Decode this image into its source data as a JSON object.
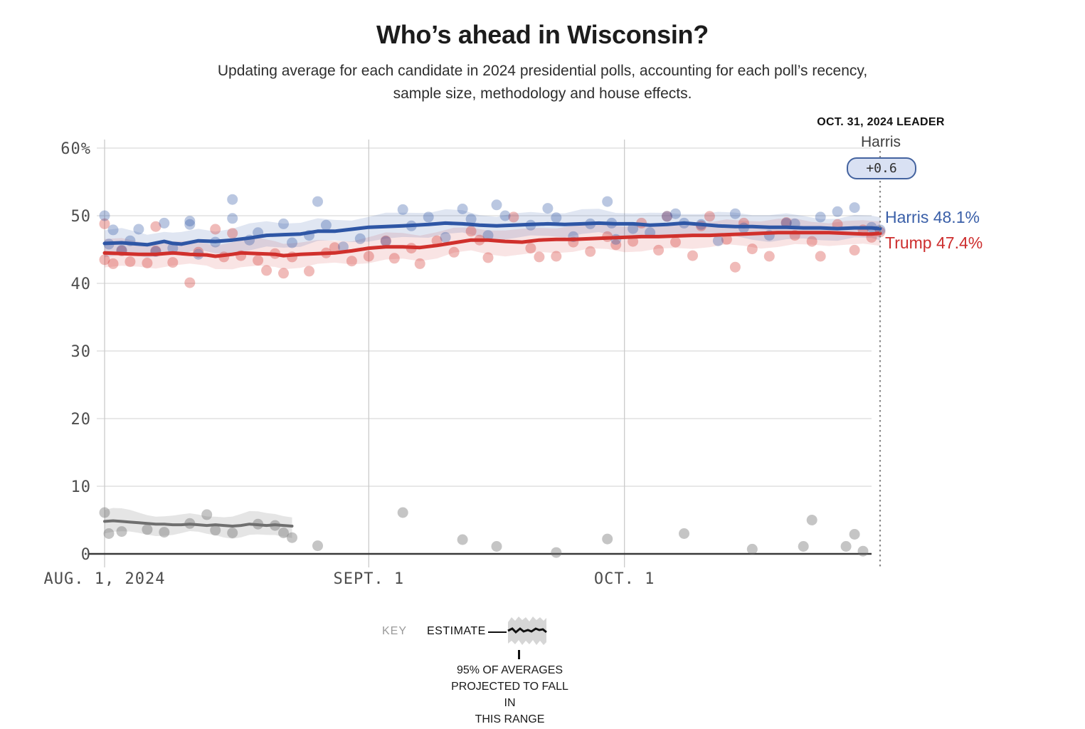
{
  "header": {
    "title": "Who’s ahead in Wisconsin?",
    "subtitle_line1": "Updating average for each candidate in 2024 presidential polls, accounting for each poll’s recency,",
    "subtitle_line2": "sample size, methodology and house effects."
  },
  "annotation": {
    "leader_label": "OCT. 31, 2024 LEADER",
    "leader_name": "Harris",
    "leader_margin": "+0.6"
  },
  "end_labels": {
    "harris": "Harris 48.1%",
    "trump": "Trump 47.4%"
  },
  "key": {
    "key_label": "KEY",
    "estimate_label": "ESTIMATE",
    "caption_line1": "95% OF AVERAGES",
    "caption_line2": "PROJECTED TO FALL IN",
    "caption_line3": "THIS RANGE"
  },
  "colors": {
    "harris_line": "#2e56a5",
    "trump_line": "#d0302c",
    "gray_line": "#6f6f6f",
    "harris_band": "#3c62ac",
    "trump_band": "#d0302c",
    "gray_band": "#999999",
    "grid": "#d9d9d9",
    "vertical_grid": "#cbcbcb",
    "zero_axis": "#3a3a3a",
    "tick_text": "#4d4d4d",
    "dotted_line": "#8a8a8a",
    "pill_bg": "#d9e1f3",
    "pill_border": "#44639f"
  },
  "chart_data": {
    "type": "line",
    "title": "Who’s ahead in Wisconsin?",
    "x_unit": "days since Aug 1, 2024",
    "x_range_days": [
      0,
      91
    ],
    "ylim": [
      0,
      60
    ],
    "grid": true,
    "y_ticks": [
      {
        "label": "0",
        "value": 0
      },
      {
        "label": "10",
        "value": 10
      },
      {
        "label": "20",
        "value": 20
      },
      {
        "label": "30",
        "value": 30
      },
      {
        "label": "40",
        "value": 40
      },
      {
        "label": "50",
        "value": 50
      },
      {
        "label": "60%",
        "value": 60
      }
    ],
    "x_ticks": [
      {
        "label": "AUG. 1, 2024",
        "day": 0
      },
      {
        "label": "SEPT. 1",
        "day": 31
      },
      {
        "label": "OCT. 1",
        "day": 61
      }
    ],
    "end_marker_day": 91,
    "series": [
      {
        "name": "unlabeled gray candidate",
        "final_value": null,
        "band_halfwidth": 1.5,
        "points": [
          [
            0,
            4.8
          ],
          [
            1,
            4.9
          ],
          [
            2,
            4.8
          ],
          [
            3,
            4.7
          ],
          [
            4,
            4.6
          ],
          [
            5,
            4.5
          ],
          [
            6,
            4.4
          ],
          [
            7,
            4.4
          ],
          [
            8,
            4.3
          ],
          [
            9,
            4.3
          ],
          [
            10,
            4.4
          ],
          [
            11,
            4.3
          ],
          [
            12,
            4.2
          ],
          [
            13,
            4.3
          ],
          [
            14,
            4.2
          ],
          [
            15,
            4.1
          ],
          [
            16,
            4.2
          ],
          [
            17,
            4.4
          ],
          [
            18,
            4.3
          ],
          [
            19,
            4.2
          ],
          [
            20,
            4.3
          ],
          [
            21,
            4.2
          ],
          [
            22,
            4.1
          ]
        ],
        "scatter": [
          [
            0,
            6.1
          ],
          [
            0.5,
            3.0
          ],
          [
            2,
            3.3
          ],
          [
            5,
            3.6
          ],
          [
            7,
            3.2
          ],
          [
            10,
            4.5
          ],
          [
            12,
            5.8
          ],
          [
            13,
            3.5
          ],
          [
            15,
            3.1
          ],
          [
            18,
            4.4
          ],
          [
            20,
            4.2
          ],
          [
            21,
            3.1
          ],
          [
            22,
            2.4
          ],
          [
            25,
            1.2
          ],
          [
            35,
            6.1
          ],
          [
            42,
            2.1
          ],
          [
            46,
            1.1
          ],
          [
            53,
            0.2
          ],
          [
            59,
            2.2
          ],
          [
            68,
            3.0
          ],
          [
            76,
            0.7
          ],
          [
            82,
            1.1
          ],
          [
            83,
            5.0
          ],
          [
            87,
            1.1
          ],
          [
            88,
            2.9
          ],
          [
            89,
            0.4
          ]
        ]
      },
      {
        "name": "Trump",
        "final_value": 47.4,
        "band_halfwidth": 1.85,
        "points": [
          [
            0,
            44.5
          ],
          [
            2,
            44.4
          ],
          [
            4,
            44.3
          ],
          [
            6,
            44.3
          ],
          [
            8,
            44.5
          ],
          [
            10,
            44.3
          ],
          [
            12,
            44.2
          ],
          [
            13,
            44.0
          ],
          [
            15,
            44.3
          ],
          [
            16,
            44.5
          ],
          [
            18,
            44.4
          ],
          [
            20,
            44.3
          ],
          [
            21,
            44.1
          ],
          [
            23,
            44.3
          ],
          [
            25,
            44.4
          ],
          [
            27,
            44.5
          ],
          [
            29,
            44.8
          ],
          [
            31,
            45.2
          ],
          [
            33,
            45.4
          ],
          [
            35,
            45.4
          ],
          [
            37,
            45.3
          ],
          [
            39,
            45.6
          ],
          [
            41,
            46.0
          ],
          [
            43,
            46.4
          ],
          [
            45,
            46.4
          ],
          [
            47,
            46.2
          ],
          [
            49,
            46.1
          ],
          [
            51,
            46.4
          ],
          [
            53,
            46.5
          ],
          [
            55,
            46.5
          ],
          [
            57,
            46.6
          ],
          [
            59,
            46.7
          ],
          [
            61,
            46.8
          ],
          [
            63,
            46.9
          ],
          [
            65,
            46.9
          ],
          [
            67,
            47.0
          ],
          [
            69,
            47.1
          ],
          [
            71,
            47.1
          ],
          [
            73,
            47.2
          ],
          [
            75,
            47.3
          ],
          [
            77,
            47.4
          ],
          [
            79,
            47.5
          ],
          [
            81,
            47.5
          ],
          [
            83,
            47.5
          ],
          [
            85,
            47.5
          ],
          [
            87,
            47.4
          ],
          [
            89,
            47.3
          ],
          [
            90,
            47.3
          ],
          [
            91,
            47.4
          ]
        ],
        "scatter": [
          [
            0,
            48.8
          ],
          [
            0,
            43.5
          ],
          [
            1,
            42.9
          ],
          [
            2,
            44.8
          ],
          [
            3,
            43.2
          ],
          [
            5,
            43.0
          ],
          [
            6,
            48.4
          ],
          [
            6,
            44.8
          ],
          [
            8,
            43.1
          ],
          [
            10,
            40.1
          ],
          [
            11,
            44.6
          ],
          [
            13,
            48.0
          ],
          [
            14,
            43.9
          ],
          [
            15,
            47.4
          ],
          [
            16,
            44.1
          ],
          [
            18,
            43.4
          ],
          [
            19,
            41.9
          ],
          [
            20,
            44.4
          ],
          [
            21,
            41.5
          ],
          [
            22,
            43.9
          ],
          [
            24,
            41.8
          ],
          [
            26,
            44.5
          ],
          [
            27,
            45.3
          ],
          [
            29,
            43.3
          ],
          [
            31,
            44.0
          ],
          [
            33,
            46.3
          ],
          [
            34,
            43.7
          ],
          [
            36,
            45.2
          ],
          [
            37,
            42.9
          ],
          [
            39,
            46.3
          ],
          [
            41,
            44.6
          ],
          [
            43,
            47.7
          ],
          [
            44,
            46.4
          ],
          [
            45,
            43.8
          ],
          [
            48,
            49.8
          ],
          [
            50,
            45.2
          ],
          [
            51,
            43.9
          ],
          [
            53,
            44.0
          ],
          [
            55,
            46.1
          ],
          [
            57,
            44.7
          ],
          [
            59,
            46.9
          ],
          [
            60,
            45.7
          ],
          [
            62,
            46.2
          ],
          [
            63,
            48.9
          ],
          [
            65,
            44.9
          ],
          [
            66,
            49.9
          ],
          [
            67,
            46.1
          ],
          [
            69,
            44.1
          ],
          [
            70,
            48.5
          ],
          [
            71,
            49.9
          ],
          [
            73,
            46.5
          ],
          [
            74,
            42.4
          ],
          [
            75,
            48.9
          ],
          [
            76,
            45.1
          ],
          [
            78,
            44.0
          ],
          [
            80,
            49.0
          ],
          [
            81,
            47.1
          ],
          [
            83,
            46.2
          ],
          [
            84,
            44.0
          ],
          [
            86,
            48.7
          ],
          [
            88,
            44.9
          ],
          [
            89,
            47.9
          ],
          [
            90,
            46.8
          ],
          [
            91,
            47.6
          ]
        ]
      },
      {
        "name": "Harris",
        "final_value": 48.1,
        "band_halfwidth": 1.75,
        "points": [
          [
            0,
            45.9
          ],
          [
            2,
            46.0
          ],
          [
            4,
            45.8
          ],
          [
            5,
            45.7
          ],
          [
            7,
            46.2
          ],
          [
            8,
            45.9
          ],
          [
            9,
            45.8
          ],
          [
            11,
            46.3
          ],
          [
            13,
            46.2
          ],
          [
            15,
            46.4
          ],
          [
            17,
            46.7
          ],
          [
            19,
            47.1
          ],
          [
            21,
            47.2
          ],
          [
            23,
            47.3
          ],
          [
            25,
            47.7
          ],
          [
            27,
            47.7
          ],
          [
            29,
            48.0
          ],
          [
            31,
            48.3
          ],
          [
            33,
            48.4
          ],
          [
            35,
            48.5
          ],
          [
            38,
            48.7
          ],
          [
            40,
            48.9
          ],
          [
            42,
            48.8
          ],
          [
            44,
            48.6
          ],
          [
            46,
            48.5
          ],
          [
            48,
            48.6
          ],
          [
            50,
            48.7
          ],
          [
            52,
            48.8
          ],
          [
            54,
            48.7
          ],
          [
            56,
            48.8
          ],
          [
            58,
            48.9
          ],
          [
            60,
            48.8
          ],
          [
            62,
            48.8
          ],
          [
            64,
            48.6
          ],
          [
            66,
            48.7
          ],
          [
            68,
            48.9
          ],
          [
            70,
            48.7
          ],
          [
            72,
            48.5
          ],
          [
            74,
            48.4
          ],
          [
            76,
            48.4
          ],
          [
            78,
            48.3
          ],
          [
            80,
            48.3
          ],
          [
            82,
            48.2
          ],
          [
            84,
            48.2
          ],
          [
            86,
            48.1
          ],
          [
            88,
            48.2
          ],
          [
            90,
            48.2
          ],
          [
            91,
            48.1
          ]
        ],
        "scatter": [
          [
            0,
            50.0
          ],
          [
            0.5,
            45.8
          ],
          [
            1,
            47.9
          ],
          [
            2,
            44.9
          ],
          [
            3,
            46.3
          ],
          [
            4,
            48.0
          ],
          [
            6,
            44.7
          ],
          [
            7,
            48.9
          ],
          [
            8,
            45.2
          ],
          [
            10,
            48.7
          ],
          [
            10,
            49.2
          ],
          [
            11,
            44.3
          ],
          [
            13,
            46.1
          ],
          [
            15,
            52.4
          ],
          [
            15,
            49.6
          ],
          [
            17,
            46.4
          ],
          [
            18,
            47.5
          ],
          [
            21,
            48.8
          ],
          [
            22,
            46.0
          ],
          [
            24,
            47.1
          ],
          [
            25,
            52.1
          ],
          [
            26,
            48.6
          ],
          [
            28,
            45.4
          ],
          [
            30,
            46.6
          ],
          [
            33,
            46.2
          ],
          [
            35,
            50.9
          ],
          [
            36,
            48.5
          ],
          [
            38,
            49.8
          ],
          [
            40,
            46.8
          ],
          [
            42,
            51.0
          ],
          [
            43,
            49.5
          ],
          [
            45,
            47.1
          ],
          [
            46,
            51.6
          ],
          [
            47,
            50.0
          ],
          [
            50,
            48.6
          ],
          [
            52,
            51.1
          ],
          [
            53,
            49.7
          ],
          [
            55,
            46.9
          ],
          [
            57,
            48.8
          ],
          [
            59,
            52.1
          ],
          [
            59.5,
            48.9
          ],
          [
            60,
            46.5
          ],
          [
            62,
            48.1
          ],
          [
            64,
            47.5
          ],
          [
            66,
            49.9
          ],
          [
            67,
            50.3
          ],
          [
            68,
            48.9
          ],
          [
            70,
            48.7
          ],
          [
            72,
            46.3
          ],
          [
            74,
            50.3
          ],
          [
            75,
            48.2
          ],
          [
            78,
            47.1
          ],
          [
            80,
            48.9
          ],
          [
            81,
            48.8
          ],
          [
            84,
            49.8
          ],
          [
            86,
            50.6
          ],
          [
            88,
            51.2
          ],
          [
            90,
            48.3
          ],
          [
            91,
            47.9
          ]
        ]
      }
    ]
  }
}
